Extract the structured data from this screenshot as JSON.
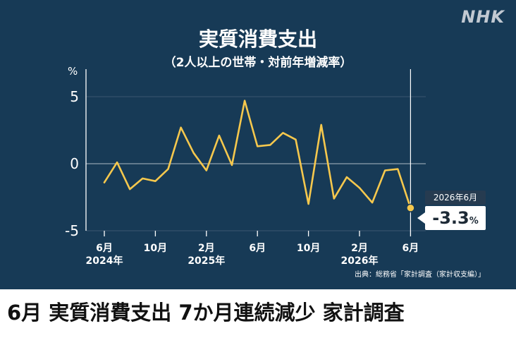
{
  "brand": {
    "logo": "NHK"
  },
  "headline": "6月 実質消費支出 7か月連続減少 家計調査",
  "chart_data": {
    "type": "line",
    "title": "実質消費支出",
    "subtitle": "（2人以上の世帯・対前年増減率）",
    "ylabel": "%",
    "ylim": [
      -5,
      6
    ],
    "yticks": [
      5,
      0,
      -5
    ],
    "x_tick_labels": [
      {
        "month": "6月",
        "year": "2024年",
        "index": 0
      },
      {
        "month": "10月",
        "year": "",
        "index": 4
      },
      {
        "month": "2月",
        "year": "2025年",
        "index": 8
      },
      {
        "month": "6月",
        "year": "",
        "index": 12
      },
      {
        "month": "10月",
        "year": "",
        "index": 16
      },
      {
        "month": "2月",
        "year": "2026年",
        "index": 20
      },
      {
        "month": "6月",
        "year": "",
        "index": 24
      }
    ],
    "x": [
      "2024-06",
      "2024-07",
      "2024-08",
      "2024-09",
      "2024-10",
      "2024-11",
      "2024-12",
      "2025-01",
      "2025-02",
      "2025-03",
      "2025-04",
      "2025-05",
      "2025-06",
      "2025-07",
      "2025-08",
      "2025-09",
      "2025-10",
      "2025-11",
      "2025-12",
      "2026-01",
      "2026-02",
      "2026-03",
      "2026-04",
      "2026-05",
      "2026-06"
    ],
    "series": [
      {
        "values": [
          -1.4,
          0.1,
          -1.9,
          -1.1,
          -1.3,
          -0.4,
          2.7,
          0.8,
          -0.5,
          2.1,
          -0.1,
          4.7,
          1.3,
          1.4,
          2.3,
          1.8,
          -3.0,
          2.9,
          -2.6,
          -1.0,
          -1.8,
          -2.9,
          -0.5,
          -0.4,
          -3.3
        ],
        "color": "#f6c84d"
      }
    ],
    "grid": true,
    "annotation": {
      "date": "2026年6月",
      "value": "-3.3",
      "unit": "%"
    },
    "source": "出典：総務省「家計調査（家計収支編）」"
  },
  "colors": {
    "panel_bg": "#173a56",
    "line": "#f6c84d",
    "grid": "#3b5770",
    "axis": "#ffffff"
  }
}
